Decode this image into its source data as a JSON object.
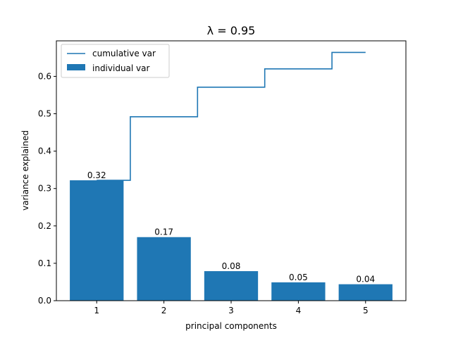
{
  "chart_data": {
    "type": "bar",
    "title": "λ = 0.95",
    "xlabel": "principal components",
    "ylabel": "variance explained",
    "categories": [
      1,
      2,
      3,
      4,
      5
    ],
    "x_tick_labels": [
      "1",
      "2",
      "3",
      "4",
      "5"
    ],
    "y_ticks": [
      0.0,
      0.1,
      0.2,
      0.3,
      0.4,
      0.5,
      0.6
    ],
    "y_tick_labels": [
      "0.0",
      "0.1",
      "0.2",
      "0.3",
      "0.4",
      "0.5",
      "0.6"
    ],
    "ylim": [
      0.0,
      0.695
    ],
    "xlim": [
      0.4,
      5.6
    ],
    "series": [
      {
        "name": "individual var",
        "type": "bar",
        "values": [
          0.322,
          0.17,
          0.079,
          0.049,
          0.044
        ],
        "labels": [
          "0.32",
          "0.17",
          "0.08",
          "0.05",
          "0.04"
        ],
        "color": "#1f77b4"
      },
      {
        "name": "cumulative var",
        "type": "step",
        "values": [
          0.322,
          0.492,
          0.571,
          0.62,
          0.664
        ],
        "color": "#1f77b4"
      }
    ],
    "legend": {
      "position": "top-left",
      "entries": [
        "cumulative var",
        "individual var"
      ]
    },
    "grid": false
  }
}
